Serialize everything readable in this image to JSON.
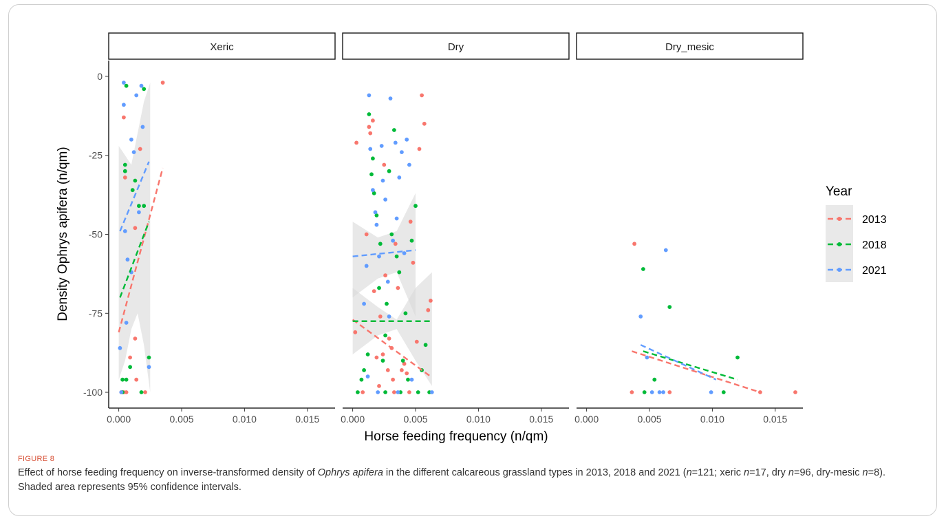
{
  "figure": {
    "label": "FIGURE 8",
    "caption": {
      "p1": "Effect of horse feeding frequency on inverse-transformed density of ",
      "species": "Ophrys apifera",
      "p2": " in the different calcareous grassland types in 2013, 2018 and 2021 (",
      "n1": "n",
      "p3": "=121; xeric ",
      "n2": "n",
      "p4": "=17, dry ",
      "n3": "n",
      "p5": "=96, dry-mesic ",
      "n4": "n",
      "p6": "=8). Shaded area represents 95% confidence intervals."
    }
  },
  "colors": {
    "2013": "#F8766D",
    "2018": "#00BA38",
    "2021": "#619CFF",
    "ribbon": "#d9d9d9"
  },
  "chart_data": {
    "type": "scatter",
    "xlabel": "Horse feeding frequency (n/qm)",
    "ylabel": "Density Ophrys apifera (n/qm)",
    "xlim": [
      -0.0008,
      0.0172
    ],
    "ylim": [
      -105,
      5
    ],
    "xticks": [
      0.0,
      0.005,
      0.01,
      0.015
    ],
    "xtick_labels": [
      "0.000",
      "0.005",
      "0.010",
      "0.015"
    ],
    "yticks": [
      0,
      -25,
      -50,
      -75,
      -100
    ],
    "ytick_labels": [
      "0",
      "-25",
      "-50",
      "-75",
      "-100"
    ],
    "legend": {
      "title": "Year",
      "entries": [
        "2013",
        "2018",
        "2021"
      ],
      "position": "right"
    },
    "facets": [
      {
        "name": "Xeric",
        "points": [
          {
            "x": 0.0002,
            "y": -100,
            "year": "2013"
          },
          {
            "x": 0.0004,
            "y": -100,
            "year": "2013"
          },
          {
            "x": 0.0006,
            "y": -100,
            "year": "2013"
          },
          {
            "x": 0.0014,
            "y": -96,
            "year": "2013"
          },
          {
            "x": 0.0009,
            "y": -89,
            "year": "2013"
          },
          {
            "x": 0.0013,
            "y": -83,
            "year": "2013"
          },
          {
            "x": 0.0005,
            "y": -32,
            "year": "2013"
          },
          {
            "x": 0.0004,
            "y": -13,
            "year": "2013"
          },
          {
            "x": 0.0017,
            "y": -23,
            "year": "2013"
          },
          {
            "x": 0.0035,
            "y": -2,
            "year": "2013"
          },
          {
            "x": 0.0013,
            "y": -48,
            "year": "2013"
          },
          {
            "x": 0.0021,
            "y": -100,
            "year": "2013"
          },
          {
            "x": 0.0003,
            "y": -96,
            "year": "2018"
          },
          {
            "x": 0.0006,
            "y": -96,
            "year": "2018"
          },
          {
            "x": 0.0009,
            "y": -92,
            "year": "2018"
          },
          {
            "x": 0.0003,
            "y": -100,
            "year": "2018"
          },
          {
            "x": 0.0018,
            "y": -100,
            "year": "2018"
          },
          {
            "x": 0.0024,
            "y": -89,
            "year": "2018"
          },
          {
            "x": 0.0005,
            "y": -30,
            "year": "2018"
          },
          {
            "x": 0.0005,
            "y": -28,
            "year": "2018"
          },
          {
            "x": 0.0013,
            "y": -33,
            "year": "2018"
          },
          {
            "x": 0.0016,
            "y": -41,
            "year": "2018"
          },
          {
            "x": 0.002,
            "y": -41,
            "year": "2018"
          },
          {
            "x": 0.0006,
            "y": -3,
            "year": "2018"
          },
          {
            "x": 0.002,
            "y": -4,
            "year": "2018"
          },
          {
            "x": 0.0011,
            "y": -36,
            "year": "2018"
          },
          {
            "x": 0.0002,
            "y": -100,
            "year": "2021"
          },
          {
            "x": 0.0001,
            "y": -86,
            "year": "2021"
          },
          {
            "x": 0.0006,
            "y": -78,
            "year": "2021"
          },
          {
            "x": 0.0007,
            "y": -58,
            "year": "2021"
          },
          {
            "x": 0.0005,
            "y": -49,
            "year": "2021"
          },
          {
            "x": 0.0004,
            "y": -2,
            "year": "2021"
          },
          {
            "x": 0.0004,
            "y": -9,
            "year": "2021"
          },
          {
            "x": 0.0014,
            "y": -6,
            "year": "2021"
          },
          {
            "x": 0.0018,
            "y": -3,
            "year": "2021"
          },
          {
            "x": 0.001,
            "y": -20,
            "year": "2021"
          },
          {
            "x": 0.0012,
            "y": -24,
            "year": "2021"
          },
          {
            "x": 0.0019,
            "y": -16,
            "year": "2021"
          },
          {
            "x": 0.0016,
            "y": -43,
            "year": "2021"
          },
          {
            "x": 0.0024,
            "y": -92,
            "year": "2021"
          },
          {
            "x": 0.001,
            "y": -62,
            "year": "2021"
          }
        ],
        "fits": [
          {
            "year": "2013",
            "x": [
              0.0,
              0.0035
            ],
            "y": [
              -81,
              -29
            ]
          },
          {
            "year": "2018",
            "x": [
              0.0001,
              0.0024
            ],
            "y": [
              -70,
              -46
            ]
          },
          {
            "year": "2021",
            "x": [
              0.0001,
              0.0024
            ],
            "y": [
              -49,
              -27
            ]
          }
        ],
        "bands": [
          {
            "x": [
              0.0,
              0.0005,
              0.001,
              0.0015,
              0.002,
              0.0025
            ],
            "lower": [
              -96,
              -90,
              -80,
              -75,
              -85,
              -100
            ],
            "upper": [
              -22,
              -25,
              -28,
              -18,
              -8,
              -2
            ]
          }
        ]
      },
      {
        "name": "Dry",
        "points": [
          {
            "x": 0.0002,
            "y": -81,
            "year": "2013"
          },
          {
            "x": 0.0003,
            "y": -21,
            "year": "2013"
          },
          {
            "x": 0.0008,
            "y": -100,
            "year": "2013"
          },
          {
            "x": 0.0011,
            "y": -50,
            "year": "2013"
          },
          {
            "x": 0.0013,
            "y": -16,
            "year": "2013"
          },
          {
            "x": 0.0014,
            "y": -18,
            "year": "2013"
          },
          {
            "x": 0.0016,
            "y": -14,
            "year": "2013"
          },
          {
            "x": 0.0017,
            "y": -68,
            "year": "2013"
          },
          {
            "x": 0.0019,
            "y": -89,
            "year": "2013"
          },
          {
            "x": 0.0021,
            "y": -98,
            "year": "2013"
          },
          {
            "x": 0.0022,
            "y": -76,
            "year": "2013"
          },
          {
            "x": 0.0024,
            "y": -88,
            "year": "2013"
          },
          {
            "x": 0.0025,
            "y": -28,
            "year": "2013"
          },
          {
            "x": 0.0026,
            "y": -63,
            "year": "2013"
          },
          {
            "x": 0.0028,
            "y": -93,
            "year": "2013"
          },
          {
            "x": 0.0029,
            "y": -83,
            "year": "2013"
          },
          {
            "x": 0.0031,
            "y": -86,
            "year": "2013"
          },
          {
            "x": 0.0032,
            "y": -96,
            "year": "2013"
          },
          {
            "x": 0.0034,
            "y": -53,
            "year": "2013"
          },
          {
            "x": 0.0036,
            "y": -67,
            "year": "2013"
          },
          {
            "x": 0.0039,
            "y": -93,
            "year": "2013"
          },
          {
            "x": 0.0041,
            "y": -91,
            "year": "2013"
          },
          {
            "x": 0.0043,
            "y": -94,
            "year": "2013"
          },
          {
            "x": 0.0046,
            "y": -46,
            "year": "2013"
          },
          {
            "x": 0.0048,
            "y": -59,
            "year": "2013"
          },
          {
            "x": 0.0051,
            "y": -84,
            "year": "2013"
          },
          {
            "x": 0.0053,
            "y": -23,
            "year": "2013"
          },
          {
            "x": 0.0055,
            "y": -6,
            "year": "2013"
          },
          {
            "x": 0.0057,
            "y": -15,
            "year": "2013"
          },
          {
            "x": 0.006,
            "y": -74,
            "year": "2013"
          },
          {
            "x": 0.0062,
            "y": -71,
            "year": "2013"
          },
          {
            "x": 0.0045,
            "y": -100,
            "year": "2013"
          },
          {
            "x": 0.0033,
            "y": -100,
            "year": "2013"
          },
          {
            "x": 0.0004,
            "y": -100,
            "year": "2018"
          },
          {
            "x": 0.0007,
            "y": -96,
            "year": "2018"
          },
          {
            "x": 0.0009,
            "y": -93,
            "year": "2018"
          },
          {
            "x": 0.0012,
            "y": -88,
            "year": "2018"
          },
          {
            "x": 0.0013,
            "y": -12,
            "year": "2018"
          },
          {
            "x": 0.0015,
            "y": -31,
            "year": "2018"
          },
          {
            "x": 0.0016,
            "y": -26,
            "year": "2018"
          },
          {
            "x": 0.0017,
            "y": -37,
            "year": "2018"
          },
          {
            "x": 0.0019,
            "y": -44,
            "year": "2018"
          },
          {
            "x": 0.0021,
            "y": -67,
            "year": "2018"
          },
          {
            "x": 0.0022,
            "y": -53,
            "year": "2018"
          },
          {
            "x": 0.0024,
            "y": -90,
            "year": "2018"
          },
          {
            "x": 0.0026,
            "y": -82,
            "year": "2018"
          },
          {
            "x": 0.0027,
            "y": -72,
            "year": "2018"
          },
          {
            "x": 0.0029,
            "y": -30,
            "year": "2018"
          },
          {
            "x": 0.0031,
            "y": -50,
            "year": "2018"
          },
          {
            "x": 0.0033,
            "y": -17,
            "year": "2018"
          },
          {
            "x": 0.0035,
            "y": -57,
            "year": "2018"
          },
          {
            "x": 0.0037,
            "y": -62,
            "year": "2018"
          },
          {
            "x": 0.004,
            "y": -90,
            "year": "2018"
          },
          {
            "x": 0.0042,
            "y": -75,
            "year": "2018"
          },
          {
            "x": 0.0044,
            "y": -96,
            "year": "2018"
          },
          {
            "x": 0.0047,
            "y": -52,
            "year": "2018"
          },
          {
            "x": 0.005,
            "y": -41,
            "year": "2018"
          },
          {
            "x": 0.0052,
            "y": -100,
            "year": "2018"
          },
          {
            "x": 0.0055,
            "y": -93,
            "year": "2018"
          },
          {
            "x": 0.0058,
            "y": -85,
            "year": "2018"
          },
          {
            "x": 0.0061,
            "y": -100,
            "year": "2018"
          },
          {
            "x": 0.0038,
            "y": -100,
            "year": "2018"
          },
          {
            "x": 0.0026,
            "y": -100,
            "year": "2018"
          },
          {
            "x": 0.0009,
            "y": -72,
            "year": "2021"
          },
          {
            "x": 0.0011,
            "y": -60,
            "year": "2021"
          },
          {
            "x": 0.0013,
            "y": -6,
            "year": "2021"
          },
          {
            "x": 0.0014,
            "y": -23,
            "year": "2021"
          },
          {
            "x": 0.0016,
            "y": -36,
            "year": "2021"
          },
          {
            "x": 0.0018,
            "y": -43,
            "year": "2021"
          },
          {
            "x": 0.0019,
            "y": -47,
            "year": "2021"
          },
          {
            "x": 0.0021,
            "y": -57,
            "year": "2021"
          },
          {
            "x": 0.0023,
            "y": -22,
            "year": "2021"
          },
          {
            "x": 0.0024,
            "y": -33,
            "year": "2021"
          },
          {
            "x": 0.0026,
            "y": -39,
            "year": "2021"
          },
          {
            "x": 0.0028,
            "y": -65,
            "year": "2021"
          },
          {
            "x": 0.0029,
            "y": -76,
            "year": "2021"
          },
          {
            "x": 0.003,
            "y": -7,
            "year": "2021"
          },
          {
            "x": 0.0032,
            "y": -52,
            "year": "2021"
          },
          {
            "x": 0.0034,
            "y": -21,
            "year": "2021"
          },
          {
            "x": 0.0035,
            "y": -45,
            "year": "2021"
          },
          {
            "x": 0.0037,
            "y": -32,
            "year": "2021"
          },
          {
            "x": 0.0039,
            "y": -24,
            "year": "2021"
          },
          {
            "x": 0.0041,
            "y": -56,
            "year": "2021"
          },
          {
            "x": 0.0043,
            "y": -20,
            "year": "2021"
          },
          {
            "x": 0.0045,
            "y": -28,
            "year": "2021"
          },
          {
            "x": 0.0047,
            "y": -96,
            "year": "2021"
          },
          {
            "x": 0.0063,
            "y": -100,
            "year": "2021"
          },
          {
            "x": 0.002,
            "y": -100,
            "year": "2021"
          },
          {
            "x": 0.0012,
            "y": -95,
            "year": "2021"
          },
          {
            "x": 0.0036,
            "y": -100,
            "year": "2021"
          }
        ],
        "fits": [
          {
            "year": "2013",
            "x": [
              0.0,
              0.0062
            ],
            "y": [
              -77,
              -95
            ]
          },
          {
            "year": "2018",
            "x": [
              0.0,
              0.0063
            ],
            "y": [
              -77.5,
              -77.5
            ]
          },
          {
            "year": "2021",
            "x": [
              0.0,
              0.005
            ],
            "y": [
              -57,
              -55
            ]
          }
        ],
        "bands": [
          {
            "x": [
              0.0,
              0.002,
              0.0035,
              0.005,
              0.0063
            ],
            "lower": [
              -88,
              -82,
              -80,
              -90,
              -98
            ],
            "upper": [
              -67,
              -73,
              -77,
              -67,
              -62
            ]
          },
          {
            "x": [
              0.0,
              0.002,
              0.0035,
              0.005
            ],
            "lower": [
              -70,
              -64,
              -62,
              -76
            ],
            "upper": [
              -46,
              -51,
              -49,
              -37
            ]
          }
        ]
      },
      {
        "name": "Dry_mesic",
        "points": [
          {
            "x": 0.0036,
            "y": -100,
            "year": "2013"
          },
          {
            "x": 0.0038,
            "y": -53,
            "year": "2013"
          },
          {
            "x": 0.0066,
            "y": -100,
            "year": "2013"
          },
          {
            "x": 0.0138,
            "y": -100,
            "year": "2013"
          },
          {
            "x": 0.0166,
            "y": -100,
            "year": "2013"
          },
          {
            "x": 0.0045,
            "y": -61,
            "year": "2018"
          },
          {
            "x": 0.0046,
            "y": -100,
            "year": "2018"
          },
          {
            "x": 0.0054,
            "y": -96,
            "year": "2018"
          },
          {
            "x": 0.0066,
            "y": -73,
            "year": "2018"
          },
          {
            "x": 0.0109,
            "y": -100,
            "year": "2018"
          },
          {
            "x": 0.012,
            "y": -89,
            "year": "2018"
          },
          {
            "x": 0.0043,
            "y": -76,
            "year": "2021"
          },
          {
            "x": 0.0048,
            "y": -89,
            "year": "2021"
          },
          {
            "x": 0.0052,
            "y": -100,
            "year": "2021"
          },
          {
            "x": 0.0058,
            "y": -100,
            "year": "2021"
          },
          {
            "x": 0.0061,
            "y": -100,
            "year": "2021"
          },
          {
            "x": 0.0063,
            "y": -55,
            "year": "2021"
          },
          {
            "x": 0.0099,
            "y": -100,
            "year": "2021"
          }
        ],
        "fits": [
          {
            "year": "2013",
            "x": [
              0.0036,
              0.0138
            ],
            "y": [
              -87,
              -100
            ]
          },
          {
            "year": "2018",
            "x": [
              0.0045,
              0.012
            ],
            "y": [
              -87,
              -96
            ]
          },
          {
            "year": "2021",
            "x": [
              0.0043,
              0.0103
            ],
            "y": [
              -85,
              -96
            ]
          }
        ],
        "bands": []
      }
    ]
  }
}
